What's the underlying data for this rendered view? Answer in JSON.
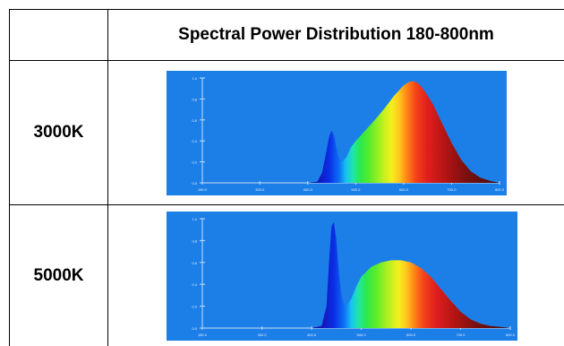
{
  "table": {
    "header": {
      "corner": "",
      "column_title": "Spectral Power Distribution 180-800nm"
    },
    "rows": [
      {
        "label": "3000K"
      },
      {
        "label": "5000K"
      }
    ]
  },
  "colors": {
    "plot_background": "#1c7fe8",
    "border": "#000000"
  },
  "chart_data": [
    {
      "type": "area",
      "title": "",
      "xlabel": "",
      "ylabel": "",
      "xlim": [
        180,
        800
      ],
      "ylim": [
        0,
        1.0
      ],
      "x_ticks": [
        180,
        300,
        400,
        500,
        600,
        700,
        800
      ],
      "y_ticks": [
        0.0,
        0.2,
        0.4,
        0.6,
        0.8,
        1.0
      ],
      "grid": false,
      "series": [
        {
          "x": [
            180,
            400,
            420,
            430,
            440,
            445,
            450,
            455,
            460,
            465,
            470,
            480,
            490,
            500,
            520,
            540,
            560,
            580,
            600,
            610,
            620,
            630,
            640,
            660,
            680,
            700,
            720,
            740,
            760,
            780,
            800
          ],
          "y": [
            0,
            0,
            0.01,
            0.1,
            0.33,
            0.45,
            0.5,
            0.44,
            0.33,
            0.24,
            0.2,
            0.24,
            0.34,
            0.4,
            0.5,
            0.6,
            0.71,
            0.83,
            0.93,
            0.96,
            0.97,
            0.95,
            0.9,
            0.76,
            0.57,
            0.38,
            0.22,
            0.11,
            0.05,
            0.02,
            0
          ]
        }
      ]
    },
    {
      "type": "area",
      "title": "",
      "xlabel": "",
      "ylabel": "",
      "xlim": [
        180,
        800
      ],
      "ylim": [
        0,
        1.0
      ],
      "x_ticks": [
        180,
        300,
        400,
        500,
        600,
        700,
        800
      ],
      "y_ticks": [
        0.0,
        0.2,
        0.4,
        0.6,
        0.8,
        1.0
      ],
      "grid": false,
      "series": [
        {
          "x": [
            180,
            400,
            420,
            430,
            435,
            440,
            445,
            450,
            455,
            460,
            465,
            470,
            480,
            490,
            500,
            520,
            540,
            560,
            580,
            600,
            620,
            640,
            660,
            680,
            700,
            720,
            740,
            760,
            780,
            800
          ],
          "y": [
            0,
            0,
            0.02,
            0.2,
            0.6,
            0.93,
            0.97,
            0.8,
            0.5,
            0.3,
            0.22,
            0.2,
            0.27,
            0.38,
            0.47,
            0.56,
            0.6,
            0.62,
            0.62,
            0.6,
            0.55,
            0.47,
            0.36,
            0.25,
            0.15,
            0.08,
            0.04,
            0.02,
            0.01,
            0
          ]
        }
      ]
    }
  ]
}
